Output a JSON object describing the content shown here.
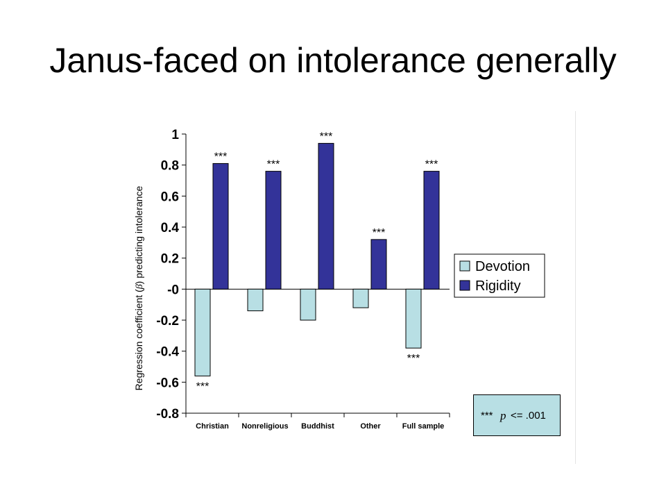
{
  "slide": {
    "title": "Janus-faced on intolerance generally"
  },
  "note": {
    "stars": "***",
    "p": "p",
    "condition": "<= .001"
  },
  "chart_data": {
    "type": "bar",
    "ylabel_prefix": "Regression coefficient (",
    "ylabel_beta": "β",
    "ylabel_suffix": ") predicting intolerance",
    "xlabel": "",
    "ylim": [
      -0.8,
      1
    ],
    "yticks": [
      1,
      0.8,
      0.6,
      0.4,
      0.2,
      0,
      -0.2,
      -0.4,
      -0.6,
      -0.8
    ],
    "ytick_labels": [
      "1",
      "0.8",
      "0.6",
      "0.4",
      "0.2",
      "-0",
      "-0.2",
      "-0.4",
      "-0.6",
      "-0.8"
    ],
    "grid": false,
    "legend_position": "right",
    "categories": [
      "Christian",
      "Nonreligious",
      "Buddhist",
      "Other",
      "Full sample"
    ],
    "series": [
      {
        "name": "Devotion",
        "color": "#b8dfe4",
        "values": [
          -0.56,
          -0.14,
          -0.2,
          -0.12,
          -0.38
        ],
        "significance": [
          "***",
          "",
          "",
          "",
          "***"
        ]
      },
      {
        "name": "Rigidity",
        "color": "#333399",
        "values": [
          0.81,
          0.76,
          0.94,
          0.32,
          0.76
        ],
        "significance": [
          "***",
          "***",
          "***",
          "***",
          "***"
        ]
      }
    ]
  }
}
